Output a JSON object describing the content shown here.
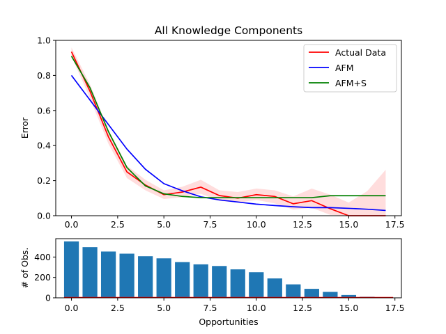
{
  "chart_data": [
    {
      "type": "line",
      "title": "All Knowledge Components",
      "xlabel": "",
      "ylabel": "Error",
      "xlim": [
        -0.85,
        17.85
      ],
      "ylim": [
        0,
        1.0
      ],
      "xticks": [
        0.0,
        2.5,
        5.0,
        7.5,
        10.0,
        12.5,
        15.0,
        17.5
      ],
      "xtick_labels": [
        "0.0",
        "2.5",
        "5.0",
        "7.5",
        "10.0",
        "12.5",
        "15.0",
        "17.5"
      ],
      "yticks": [
        0.0,
        0.2,
        0.4,
        0.6,
        0.8,
        1.0
      ],
      "ytick_labels": [
        "0.0",
        "0.2",
        "0.4",
        "0.6",
        "0.8",
        "1.0"
      ],
      "legend_position": "top-right",
      "x": [
        0,
        1,
        2,
        3,
        4,
        5,
        6,
        7,
        8,
        9,
        10,
        11,
        12,
        13,
        14,
        15,
        16,
        17
      ],
      "series": [
        {
          "name": "Actual Data",
          "color": "#ff0000",
          "values": [
            0.935,
            0.71,
            0.45,
            0.25,
            0.175,
            0.12,
            0.135,
            0.163,
            0.115,
            0.1,
            0.12,
            0.11,
            0.068,
            0.086,
            0.04,
            0.0,
            0.0,
            0.0
          ],
          "band_lower": [
            0.91,
            0.67,
            0.41,
            0.215,
            0.145,
            0.095,
            0.105,
            0.125,
            0.085,
            0.075,
            0.09,
            0.07,
            0.035,
            0.045,
            0.005,
            0.0,
            0.0,
            0.0
          ],
          "band_upper": [
            0.96,
            0.75,
            0.49,
            0.285,
            0.205,
            0.145,
            0.165,
            0.205,
            0.145,
            0.135,
            0.155,
            0.145,
            0.11,
            0.155,
            0.12,
            0.075,
            0.14,
            0.262
          ],
          "band_color": "#ffdddd"
        },
        {
          "name": "AFM",
          "color": "#0000ff",
          "values": [
            0.8,
            0.66,
            0.52,
            0.38,
            0.265,
            0.183,
            0.142,
            0.108,
            0.09,
            0.078,
            0.066,
            0.058,
            0.051,
            0.046,
            0.046,
            0.042,
            0.037,
            0.03
          ]
        },
        {
          "name": "AFM+S",
          "color": "#008000",
          "values": [
            0.91,
            0.73,
            0.48,
            0.275,
            0.17,
            0.125,
            0.11,
            0.103,
            0.103,
            0.103,
            0.103,
            0.103,
            0.103,
            0.103,
            0.114,
            0.114,
            0.114,
            0.114
          ]
        }
      ]
    },
    {
      "type": "bar",
      "title": "",
      "xlabel": "Opportunities",
      "ylabel": "# of Obs.",
      "xlim": [
        -0.85,
        17.85
      ],
      "ylim": [
        0,
        580
      ],
      "xticks": [
        0.0,
        2.5,
        5.0,
        7.5,
        10.0,
        12.5,
        15.0,
        17.5
      ],
      "xtick_labels": [
        "0.0",
        "2.5",
        "5.0",
        "7.5",
        "10.0",
        "12.5",
        "15.0",
        "17.5"
      ],
      "yticks": [
        0,
        200,
        400
      ],
      "ytick_labels": [
        "0",
        "200",
        "400"
      ],
      "color": "#1f77b4",
      "baseline_color": "#ff0000",
      "categories": [
        0,
        1,
        2,
        3,
        4,
        5,
        6,
        7,
        8,
        9,
        10,
        11,
        12,
        13,
        14,
        15,
        16,
        17
      ],
      "values": [
        553,
        497,
        454,
        433,
        408,
        387,
        350,
        328,
        312,
        279,
        251,
        190,
        132,
        88,
        58,
        28,
        10,
        3
      ]
    }
  ]
}
